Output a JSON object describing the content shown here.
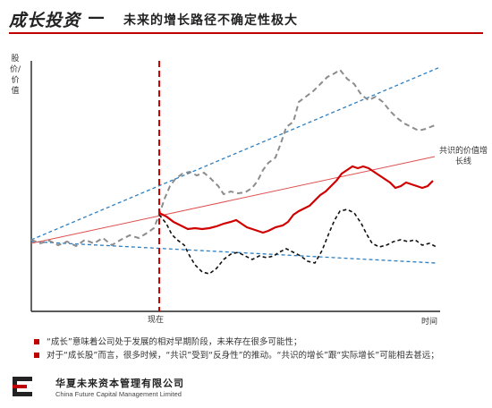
{
  "header": {
    "title_main": "成长投资",
    "title_dash": "—",
    "title_sub": "未来的增长路径不确定性极大"
  },
  "diagram": {
    "y_axis_label": "股价/价值",
    "x_marker_label": "现在",
    "x_axis_label": "时间",
    "line_label": "共识的价值增长线",
    "colors": {
      "red": "#d00000",
      "blue_dashed": "#2e7fc0",
      "gray_dashed": "#8c8c8c",
      "black_dashed": "#111111",
      "marker": "#d00000"
    }
  },
  "notes": [
    "“成长”意味着公司处于发展的相对早期阶段，未来存在很多可能性；",
    "对于“成长股”而言，很多时候，“共识”受到“反身性”的推动。“共识的增长”跟“实际增长”可能相去甚远；"
  ],
  "footer": {
    "company_cn": "华夏未来资本管理有限公司",
    "company_en": "China Future Capital Management Limited"
  }
}
